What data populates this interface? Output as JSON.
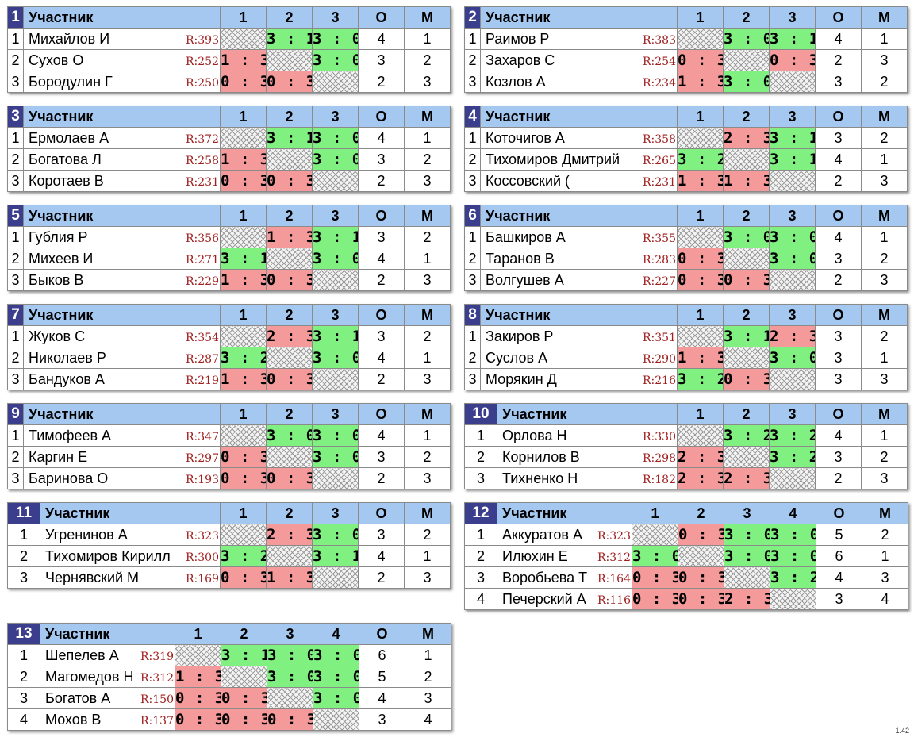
{
  "header": {
    "name_label": "Участник",
    "points_label": "О",
    "place_label": "М"
  },
  "version": "1.42",
  "groups": [
    {
      "num": "1",
      "players": [
        {
          "pos": "1",
          "name": "Михайлов И",
          "rating": "R:393",
          "scores": [
            null,
            "3 : 1",
            "3 : 0"
          ],
          "points": "4",
          "place": "1"
        },
        {
          "pos": "2",
          "name": "Сухов О",
          "rating": "R:252",
          "scores": [
            "1 : 3",
            null,
            "3 : 0"
          ],
          "points": "3",
          "place": "2"
        },
        {
          "pos": "3",
          "name": "Бородулин Г",
          "rating": "R:250",
          "scores": [
            "0 : 3",
            "0 : 3",
            null
          ],
          "points": "2",
          "place": "3"
        }
      ]
    },
    {
      "num": "2",
      "players": [
        {
          "pos": "1",
          "name": "Раимов Р",
          "rating": "R:383",
          "scores": [
            null,
            "3 : 0",
            "3 : 1"
          ],
          "points": "4",
          "place": "1"
        },
        {
          "pos": "2",
          "name": "Захаров С",
          "rating": "R:254",
          "scores": [
            "0 : 3",
            null,
            "0 : 3"
          ],
          "points": "2",
          "place": "3"
        },
        {
          "pos": "3",
          "name": "Козлов А",
          "rating": "R:234",
          "scores": [
            "1 : 3",
            "3 : 0",
            null
          ],
          "points": "3",
          "place": "2"
        }
      ]
    },
    {
      "num": "3",
      "players": [
        {
          "pos": "1",
          "name": "Ермолаев А",
          "rating": "R:372",
          "scores": [
            null,
            "3 : 1",
            "3 : 0"
          ],
          "points": "4",
          "place": "1"
        },
        {
          "pos": "2",
          "name": "Богатова Л",
          "rating": "R:258",
          "scores": [
            "1 : 3",
            null,
            "3 : 0"
          ],
          "points": "3",
          "place": "2"
        },
        {
          "pos": "3",
          "name": "Коротаев В",
          "rating": "R:231",
          "scores": [
            "0 : 3",
            "0 : 3",
            null
          ],
          "points": "2",
          "place": "3"
        }
      ]
    },
    {
      "num": "4",
      "players": [
        {
          "pos": "1",
          "name": "Коточигов А",
          "rating": "R:358",
          "scores": [
            null,
            "2 : 3",
            "3 : 1"
          ],
          "points": "3",
          "place": "2"
        },
        {
          "pos": "2",
          "name": "Тихомиров Дмитрий",
          "rating": "R:265",
          "scores": [
            "3 : 2",
            null,
            "3 : 1"
          ],
          "points": "4",
          "place": "1"
        },
        {
          "pos": "3",
          "name": "Коссовский (",
          "rating": "R:231",
          "scores": [
            "1 : 3",
            "1 : 3",
            null
          ],
          "points": "2",
          "place": "3"
        }
      ]
    },
    {
      "num": "5",
      "players": [
        {
          "pos": "1",
          "name": "Гублия Р",
          "rating": "R:356",
          "scores": [
            null,
            "1 : 3",
            "3 : 1"
          ],
          "points": "3",
          "place": "2"
        },
        {
          "pos": "2",
          "name": "Михеев И",
          "rating": "R:271",
          "scores": [
            "3 : 1",
            null,
            "3 : 0"
          ],
          "points": "4",
          "place": "1"
        },
        {
          "pos": "3",
          "name": "Быков В",
          "rating": "R:229",
          "scores": [
            "1 : 3",
            "0 : 3",
            null
          ],
          "points": "2",
          "place": "3"
        }
      ]
    },
    {
      "num": "6",
      "players": [
        {
          "pos": "1",
          "name": "Башкиров А",
          "rating": "R:355",
          "scores": [
            null,
            "3 : 0",
            "3 : 0"
          ],
          "points": "4",
          "place": "1"
        },
        {
          "pos": "2",
          "name": "Таранов В",
          "rating": "R:283",
          "scores": [
            "0 : 3",
            null,
            "3 : 0"
          ],
          "points": "3",
          "place": "2"
        },
        {
          "pos": "3",
          "name": "Волгушев А",
          "rating": "R:227",
          "scores": [
            "0 : 3",
            "0 : 3",
            null
          ],
          "points": "2",
          "place": "3"
        }
      ]
    },
    {
      "num": "7",
      "players": [
        {
          "pos": "1",
          "name": "Жуков С",
          "rating": "R:354",
          "scores": [
            null,
            "2 : 3",
            "3 : 1"
          ],
          "points": "3",
          "place": "2"
        },
        {
          "pos": "2",
          "name": "Николаев Р",
          "rating": "R:287",
          "scores": [
            "3 : 2",
            null,
            "3 : 0"
          ],
          "points": "4",
          "place": "1"
        },
        {
          "pos": "3",
          "name": "Бандуков А",
          "rating": "R:219",
          "scores": [
            "1 : 3",
            "0 : 3",
            null
          ],
          "points": "2",
          "place": "3"
        }
      ]
    },
    {
      "num": "8",
      "players": [
        {
          "pos": "1",
          "name": "Закиров Р",
          "rating": "R:351",
          "scores": [
            null,
            "3 : 1",
            "2 : 3"
          ],
          "points": "3",
          "place": "2"
        },
        {
          "pos": "2",
          "name": "Суслов А",
          "rating": "R:290",
          "scores": [
            "1 : 3",
            null,
            "3 : 0"
          ],
          "points": "3",
          "place": "1"
        },
        {
          "pos": "3",
          "name": "Морякин Д",
          "rating": "R:216",
          "scores": [
            "3 : 2",
            "0 : 3",
            null
          ],
          "points": "3",
          "place": "3"
        }
      ]
    },
    {
      "num": "9",
      "players": [
        {
          "pos": "1",
          "name": "Тимофеев А",
          "rating": "R:347",
          "scores": [
            null,
            "3 : 0",
            "3 : 0"
          ],
          "points": "4",
          "place": "1"
        },
        {
          "pos": "2",
          "name": "Каргин Е",
          "rating": "R:297",
          "scores": [
            "0 : 3",
            null,
            "3 : 0"
          ],
          "points": "3",
          "place": "2"
        },
        {
          "pos": "3",
          "name": "Баринова О",
          "rating": "R:193",
          "scores": [
            "0 : 3",
            "0 : 3",
            null
          ],
          "points": "2",
          "place": "3"
        }
      ]
    },
    {
      "num": "10",
      "players": [
        {
          "pos": "1",
          "name": "Орлова Н",
          "rating": "R:330",
          "scores": [
            null,
            "3 : 2",
            "3 : 2"
          ],
          "points": "4",
          "place": "1"
        },
        {
          "pos": "2",
          "name": "Корнилов В",
          "rating": "R:298",
          "scores": [
            "2 : 3",
            null,
            "3 : 2"
          ],
          "points": "3",
          "place": "2"
        },
        {
          "pos": "3",
          "name": "Тихненко Н",
          "rating": "R:182",
          "scores": [
            "2 : 3",
            "2 : 3",
            null
          ],
          "points": "2",
          "place": "3"
        }
      ]
    },
    {
      "num": "11",
      "players": [
        {
          "pos": "1",
          "name": "Угренинов А",
          "rating": "R:323",
          "scores": [
            null,
            "2 : 3",
            "3 : 0"
          ],
          "points": "3",
          "place": "2"
        },
        {
          "pos": "2",
          "name": "Тихомиров Кирилл",
          "rating": "R:300",
          "scores": [
            "3 : 2",
            null,
            "3 : 1"
          ],
          "points": "4",
          "place": "1"
        },
        {
          "pos": "3",
          "name": "Чернявский М",
          "rating": "R:169",
          "scores": [
            "0 : 3",
            "1 : 3",
            null
          ],
          "points": "2",
          "place": "3"
        }
      ]
    },
    {
      "num": "12",
      "players": [
        {
          "pos": "1",
          "name": "Аккуратов А",
          "rating": "R:323",
          "scores": [
            null,
            "0 : 3",
            "3 : 0",
            "3 : 0"
          ],
          "points": "5",
          "place": "2"
        },
        {
          "pos": "2",
          "name": "Илюхин Е",
          "rating": "R:312",
          "scores": [
            "3 : 0",
            null,
            "3 : 0",
            "3 : 0"
          ],
          "points": "6",
          "place": "1"
        },
        {
          "pos": "3",
          "name": "Воробьева Т",
          "rating": "R:164",
          "scores": [
            "0 : 3",
            "0 : 3",
            null,
            "3 : 2"
          ],
          "points": "4",
          "place": "3"
        },
        {
          "pos": "4",
          "name": "Печерский А",
          "rating": "R:116",
          "scores": [
            "0 : 3",
            "0 : 3",
            "2 : 3",
            null
          ],
          "points": "3",
          "place": "4"
        }
      ]
    },
    {
      "num": "13",
      "players": [
        {
          "pos": "1",
          "name": "Шепелев А",
          "rating": "R:319",
          "scores": [
            null,
            "3 : 1",
            "3 : 0",
            "3 : 0"
          ],
          "points": "6",
          "place": "1"
        },
        {
          "pos": "2",
          "name": "Магомедов Н",
          "rating": "R:312",
          "scores": [
            "1 : 3",
            null,
            "3 : 0",
            "3 : 0"
          ],
          "points": "5",
          "place": "2"
        },
        {
          "pos": "3",
          "name": "Богатов А",
          "rating": "R:150",
          "scores": [
            "0 : 3",
            "0 : 3",
            null,
            "3 : 0"
          ],
          "points": "4",
          "place": "3"
        },
        {
          "pos": "4",
          "name": "Мохов В",
          "rating": "R:137",
          "scores": [
            "0 : 3",
            "0 : 3",
            "0 : 3",
            null
          ],
          "points": "3",
          "place": "4"
        }
      ]
    }
  ]
}
